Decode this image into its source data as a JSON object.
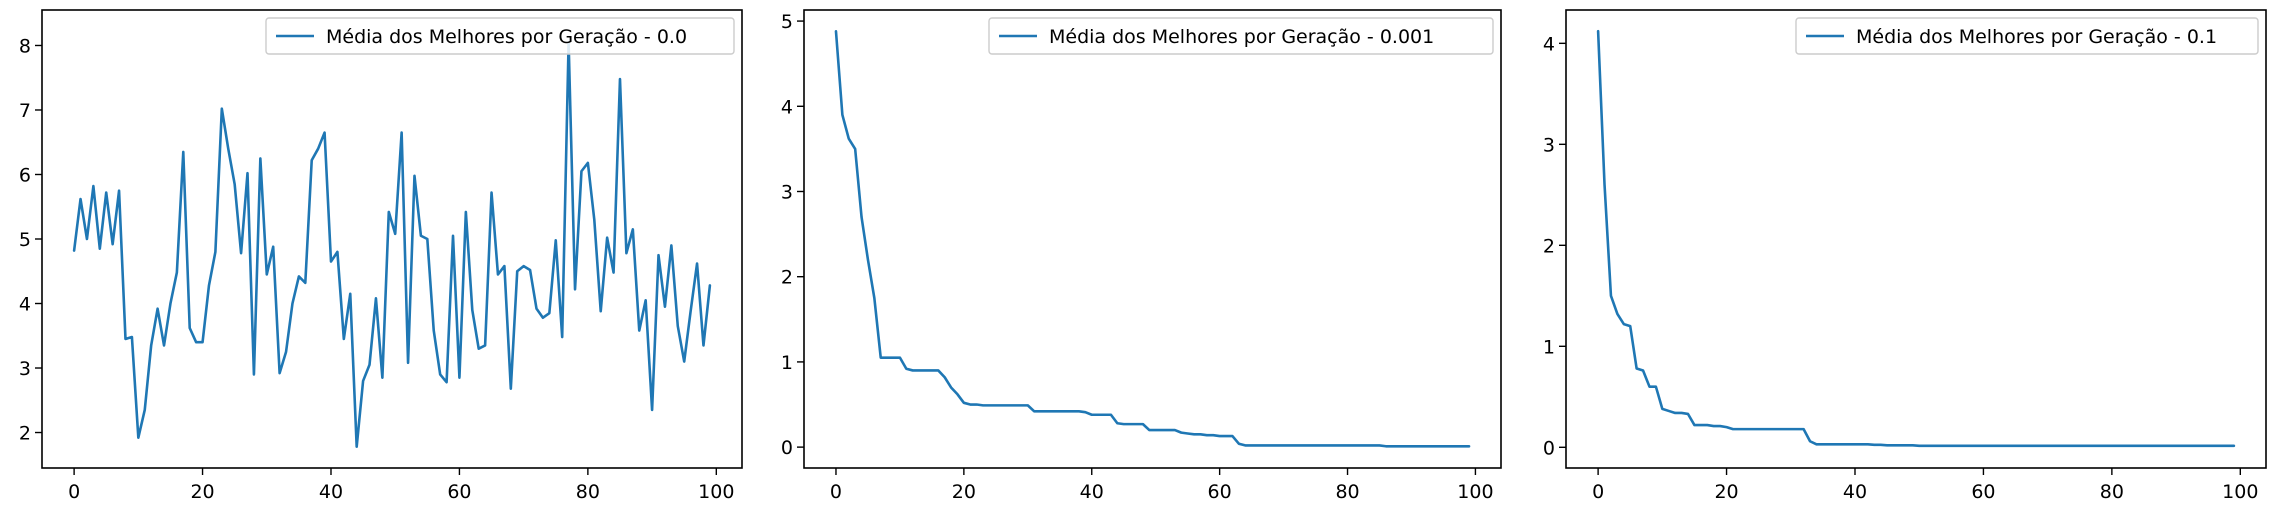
{
  "chart_data": [
    {
      "type": "line",
      "xlim": [
        -5,
        104
      ],
      "ylim": [
        1.45,
        8.55
      ],
      "xticks": [
        0,
        20,
        40,
        60,
        80,
        100
      ],
      "yticks": [
        2,
        3,
        4,
        5,
        6,
        7,
        8
      ],
      "legend_position": "top-right",
      "color": "#1f77b4",
      "series": [
        {
          "name": "Média dos Melhores por Geração - 0.0",
          "x": [
            0,
            1,
            2,
            3,
            4,
            5,
            6,
            7,
            8,
            9,
            10,
            11,
            12,
            13,
            14,
            15,
            16,
            17,
            18,
            19,
            20,
            21,
            22,
            23,
            24,
            25,
            26,
            27,
            28,
            29,
            30,
            31,
            32,
            33,
            34,
            35,
            36,
            37,
            38,
            39,
            40,
            41,
            42,
            43,
            44,
            45,
            46,
            47,
            48,
            49,
            50,
            51,
            52,
            53,
            54,
            55,
            56,
            57,
            58,
            59,
            60,
            61,
            62,
            63,
            64,
            65,
            66,
            67,
            68,
            69,
            70,
            71,
            72,
            73,
            74,
            75,
            76,
            77,
            78,
            79,
            80,
            81,
            82,
            83,
            84,
            85,
            86,
            87,
            88,
            89,
            90,
            91,
            92,
            93,
            94,
            95,
            96,
            97,
            98,
            99
          ],
          "y": [
            4.82,
            5.62,
            5.0,
            5.82,
            4.85,
            5.72,
            4.92,
            5.75,
            3.45,
            3.48,
            1.92,
            2.35,
            3.35,
            3.92,
            3.35,
            4.0,
            4.48,
            6.35,
            3.62,
            3.4,
            3.4,
            4.28,
            4.8,
            7.02,
            6.4,
            5.85,
            4.78,
            6.02,
            2.9,
            6.25,
            4.45,
            4.88,
            2.92,
            3.25,
            4.0,
            4.42,
            4.32,
            6.22,
            6.4,
            6.65,
            4.65,
            4.8,
            3.45,
            4.15,
            1.78,
            2.8,
            3.05,
            4.08,
            2.85,
            5.42,
            5.08,
            6.65,
            3.08,
            5.98,
            5.05,
            5.0,
            3.58,
            2.9,
            2.78,
            5.05,
            2.85,
            5.42,
            3.9,
            3.3,
            3.35,
            5.72,
            4.45,
            4.58,
            2.68,
            4.5,
            4.58,
            4.52,
            3.92,
            3.78,
            3.85,
            4.98,
            3.48,
            8.05,
            4.22,
            6.05,
            6.18,
            5.3,
            3.88,
            5.02,
            4.48,
            7.48,
            4.78,
            5.15,
            3.58,
            4.05,
            2.35,
            4.75,
            3.95,
            4.9,
            3.65,
            3.1,
            3.88,
            4.62,
            3.35,
            4.28
          ]
        }
      ]
    },
    {
      "type": "line",
      "xlim": [
        -5,
        104
      ],
      "ylim": [
        -0.245,
        5.13
      ],
      "xticks": [
        0,
        20,
        40,
        60,
        80,
        100
      ],
      "yticks": [
        0,
        1,
        2,
        3,
        4,
        5
      ],
      "legend_position": "top-right",
      "color": "#1f77b4",
      "series": [
        {
          "name": "Média dos Melhores por Geração - 0.001",
          "x": [
            0,
            1,
            2,
            3,
            4,
            5,
            6,
            7,
            8,
            9,
            10,
            11,
            12,
            13,
            14,
            15,
            16,
            17,
            18,
            19,
            20,
            21,
            22,
            23,
            24,
            25,
            26,
            27,
            28,
            29,
            30,
            31,
            32,
            33,
            34,
            35,
            36,
            37,
            38,
            39,
            40,
            41,
            42,
            43,
            44,
            45,
            46,
            47,
            48,
            49,
            50,
            51,
            52,
            53,
            54,
            55,
            56,
            57,
            58,
            59,
            60,
            61,
            62,
            63,
            64,
            65,
            66,
            67,
            68,
            69,
            70,
            71,
            72,
            73,
            74,
            75,
            76,
            77,
            78,
            79,
            80,
            81,
            82,
            83,
            84,
            85,
            86,
            87,
            88,
            89,
            90,
            91,
            92,
            93,
            94,
            95,
            96,
            97,
            98,
            99
          ],
          "y": [
            4.88,
            3.9,
            3.62,
            3.5,
            2.7,
            2.2,
            1.75,
            1.05,
            1.05,
            1.05,
            1.05,
            0.92,
            0.9,
            0.9,
            0.9,
            0.9,
            0.9,
            0.82,
            0.7,
            0.62,
            0.52,
            0.5,
            0.5,
            0.49,
            0.49,
            0.49,
            0.49,
            0.49,
            0.49,
            0.49,
            0.49,
            0.42,
            0.42,
            0.42,
            0.42,
            0.42,
            0.42,
            0.42,
            0.42,
            0.41,
            0.38,
            0.38,
            0.38,
            0.38,
            0.28,
            0.27,
            0.27,
            0.27,
            0.27,
            0.2,
            0.2,
            0.2,
            0.2,
            0.2,
            0.17,
            0.16,
            0.15,
            0.15,
            0.14,
            0.14,
            0.13,
            0.13,
            0.13,
            0.04,
            0.02,
            0.02,
            0.02,
            0.02,
            0.02,
            0.02,
            0.02,
            0.02,
            0.02,
            0.02,
            0.02,
            0.02,
            0.02,
            0.02,
            0.02,
            0.02,
            0.02,
            0.02,
            0.02,
            0.02,
            0.02,
            0.02,
            0.01,
            0.01,
            0.01,
            0.01,
            0.01,
            0.01,
            0.01,
            0.01,
            0.01,
            0.01,
            0.01,
            0.01,
            0.01,
            0.01
          ]
        }
      ]
    },
    {
      "type": "line",
      "xlim": [
        -5,
        104
      ],
      "ylim": [
        -0.205,
        4.33
      ],
      "xticks": [
        0,
        20,
        40,
        60,
        80,
        100
      ],
      "yticks": [
        0,
        1,
        2,
        3,
        4
      ],
      "legend_position": "top-right",
      "color": "#1f77b4",
      "series": [
        {
          "name": "Média dos Melhores por Geração - 0.1",
          "x": [
            0,
            1,
            2,
            3,
            4,
            5,
            6,
            7,
            8,
            9,
            10,
            11,
            12,
            13,
            14,
            15,
            16,
            17,
            18,
            19,
            20,
            21,
            22,
            23,
            24,
            25,
            26,
            27,
            28,
            29,
            30,
            31,
            32,
            33,
            34,
            35,
            36,
            37,
            38,
            39,
            40,
            41,
            42,
            43,
            44,
            45,
            46,
            47,
            48,
            49,
            50,
            51,
            52,
            53,
            54,
            55,
            56,
            57,
            58,
            59,
            60,
            61,
            62,
            63,
            64,
            65,
            66,
            67,
            68,
            69,
            70,
            71,
            72,
            73,
            74,
            75,
            76,
            77,
            78,
            79,
            80,
            81,
            82,
            83,
            84,
            85,
            86,
            87,
            88,
            89,
            90,
            91,
            92,
            93,
            94,
            95,
            96,
            97,
            98,
            99
          ],
          "y": [
            4.12,
            2.6,
            1.5,
            1.32,
            1.22,
            1.2,
            0.78,
            0.76,
            0.6,
            0.6,
            0.38,
            0.36,
            0.34,
            0.34,
            0.33,
            0.22,
            0.22,
            0.22,
            0.21,
            0.21,
            0.2,
            0.18,
            0.18,
            0.18,
            0.18,
            0.18,
            0.18,
            0.18,
            0.18,
            0.18,
            0.18,
            0.18,
            0.18,
            0.06,
            0.03,
            0.03,
            0.03,
            0.03,
            0.03,
            0.03,
            0.03,
            0.03,
            0.03,
            0.025,
            0.025,
            0.02,
            0.02,
            0.02,
            0.02,
            0.02,
            0.015,
            0.015,
            0.015,
            0.015,
            0.015,
            0.015,
            0.015,
            0.015,
            0.015,
            0.015,
            0.015,
            0.015,
            0.015,
            0.015,
            0.015,
            0.015,
            0.015,
            0.015,
            0.015,
            0.015,
            0.015,
            0.015,
            0.015,
            0.015,
            0.015,
            0.015,
            0.015,
            0.015,
            0.015,
            0.015,
            0.015,
            0.015,
            0.015,
            0.015,
            0.015,
            0.015,
            0.015,
            0.015,
            0.015,
            0.015,
            0.015,
            0.015,
            0.015,
            0.015,
            0.015,
            0.015,
            0.015,
            0.015,
            0.015,
            0.015
          ]
        }
      ]
    }
  ]
}
